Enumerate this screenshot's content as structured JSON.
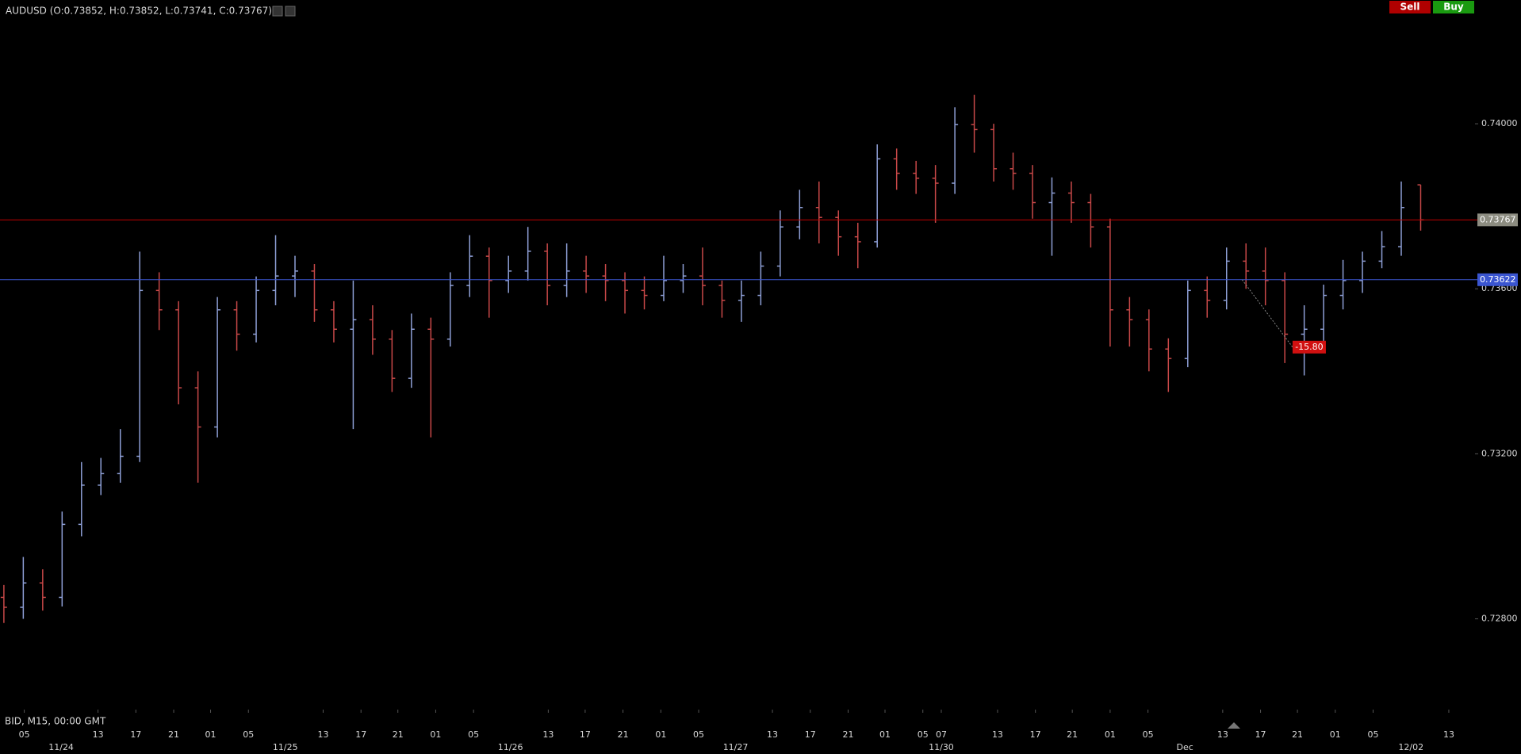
{
  "chart_data": {
    "type": "ohlc",
    "title": "AUDUSD (O:0.73852, H:0.73852, L:0.73741, C:0.73767)",
    "subtitle": "BID, M15, 00:00 GMT",
    "buttons": [
      "Sell",
      "Buy"
    ],
    "up_color": "#8e9fd6",
    "down_color": "#c84848",
    "open": [
      0.72852,
      0.72828,
      0.72887,
      0.72852,
      0.73029,
      0.73124,
      0.73152,
      0.73194,
      0.73596,
      0.73549,
      0.7336,
      0.73265,
      0.73549,
      0.7349,
      0.73596,
      0.73631,
      0.73643,
      0.73549,
      0.73502,
      0.73525,
      0.73478,
      0.73383,
      0.73502,
      0.73478,
      0.73608,
      0.73679,
      0.7362,
      0.73643,
      0.73691,
      0.73608,
      0.73643,
      0.73631,
      0.7362,
      0.73596,
      0.73584,
      0.7362,
      0.73631,
      0.73608,
      0.73572,
      0.73584,
      0.73655,
      0.7375,
      0.73797,
      0.73773,
      0.73726,
      0.73714,
      0.73915,
      0.7388,
      0.73868,
      0.73856,
      0.73998,
      0.73986,
      0.73891,
      0.7388,
      0.73809,
      0.73832,
      0.73809,
      0.7375,
      0.73549,
      0.73525,
      0.73454,
      0.73431,
      0.73596,
      0.73572,
      0.73667,
      0.73643,
      0.7362,
      0.7349,
      0.73502,
      0.73584,
      0.7362,
      0.73667,
      0.73702,
      0.73852
    ],
    "high": [
      0.72882,
      0.7295,
      0.7292,
      0.7306,
      0.7318,
      0.7319,
      0.7326,
      0.7369,
      0.7364,
      0.7357,
      0.734,
      0.7358,
      0.7357,
      0.7363,
      0.7373,
      0.7368,
      0.7366,
      0.7357,
      0.7362,
      0.7356,
      0.735,
      0.7354,
      0.7353,
      0.7364,
      0.7373,
      0.737,
      0.7368,
      0.7375,
      0.7371,
      0.7371,
      0.7368,
      0.7366,
      0.7364,
      0.7363,
      0.7368,
      0.7366,
      0.737,
      0.7362,
      0.7362,
      0.7369,
      0.7379,
      0.7384,
      0.7386,
      0.7379,
      0.7376,
      0.7395,
      0.7394,
      0.7391,
      0.739,
      0.7404,
      0.7407,
      0.74,
      0.7393,
      0.739,
      0.7387,
      0.7386,
      0.7383,
      0.7377,
      0.7358,
      0.7355,
      0.7348,
      0.7362,
      0.7363,
      0.737,
      0.7371,
      0.737,
      0.7364,
      0.7356,
      0.7361,
      0.7367,
      0.7369,
      0.7374,
      0.7386,
      0.73852
    ],
    "low": [
      0.7279,
      0.728,
      0.7282,
      0.7283,
      0.73,
      0.731,
      0.7313,
      0.7318,
      0.735,
      0.7332,
      0.7313,
      0.7324,
      0.7345,
      0.7347,
      0.7356,
      0.7358,
      0.7352,
      0.7347,
      0.7326,
      0.7344,
      0.7335,
      0.7336,
      0.7324,
      0.7346,
      0.7358,
      0.7353,
      0.7359,
      0.7362,
      0.7356,
      0.7358,
      0.7359,
      0.7357,
      0.7354,
      0.7355,
      0.7357,
      0.7359,
      0.7356,
      0.7353,
      0.7352,
      0.7356,
      0.7363,
      0.7372,
      0.7371,
      0.7368,
      0.7365,
      0.737,
      0.7384,
      0.7383,
      0.7376,
      0.7383,
      0.7393,
      0.7386,
      0.7384,
      0.7377,
      0.7368,
      0.7376,
      0.737,
      0.7346,
      0.7346,
      0.734,
      0.7335,
      0.7341,
      0.7353,
      0.7355,
      0.736,
      0.7356,
      0.7342,
      0.7339,
      0.7347,
      0.7355,
      0.7359,
      0.7365,
      0.7368,
      0.73741
    ],
    "close": [
      0.72828,
      0.72887,
      0.72852,
      0.73029,
      0.73124,
      0.73152,
      0.73194,
      0.73596,
      0.73549,
      0.7336,
      0.73265,
      0.73549,
      0.7349,
      0.73596,
      0.73631,
      0.73643,
      0.73549,
      0.73502,
      0.73525,
      0.73478,
      0.73383,
      0.73502,
      0.73478,
      0.73608,
      0.73679,
      0.7362,
      0.73643,
      0.73691,
      0.73608,
      0.73643,
      0.73631,
      0.7362,
      0.73596,
      0.73584,
      0.7362,
      0.73631,
      0.73608,
      0.73572,
      0.73584,
      0.73655,
      0.7375,
      0.73797,
      0.73773,
      0.73726,
      0.73714,
      0.73915,
      0.7388,
      0.73868,
      0.73856,
      0.73998,
      0.73986,
      0.73891,
      0.7388,
      0.73809,
      0.73832,
      0.73809,
      0.7375,
      0.73549,
      0.73525,
      0.73454,
      0.73431,
      0.73596,
      0.73572,
      0.73667,
      0.73643,
      0.7362,
      0.7349,
      0.73502,
      0.73584,
      0.7362,
      0.73667,
      0.73702,
      0.73797,
      0.73767
    ],
    "xlim": [
      -0.2,
      75.8
    ],
    "ylim": [
      0.7258,
      0.743
    ],
    "yticks": [
      {
        "value": 0.728,
        "label": "0.72800"
      },
      {
        "value": 0.732,
        "label": "0.73200"
      },
      {
        "value": 0.736,
        "label": "0.73600"
      },
      {
        "value": 0.74,
        "label": "0.74000"
      }
    ],
    "xticks": [
      {
        "value": 1.05,
        "label": "05"
      },
      {
        "value": 4.85,
        "label": "13"
      },
      {
        "value": 6.8,
        "label": "17"
      },
      {
        "value": 8.75,
        "label": "21"
      },
      {
        "value": 10.65,
        "label": "01"
      },
      {
        "value": 12.6,
        "label": "05"
      },
      {
        "value": 16.45,
        "label": "13"
      },
      {
        "value": 18.4,
        "label": "17"
      },
      {
        "value": 20.3,
        "label": "21"
      },
      {
        "value": 22.25,
        "label": "01"
      },
      {
        "value": 24.2,
        "label": "05"
      },
      {
        "value": 28.05,
        "label": "13"
      },
      {
        "value": 29.95,
        "label": "17"
      },
      {
        "value": 31.9,
        "label": "21"
      },
      {
        "value": 33.85,
        "label": "01"
      },
      {
        "value": 35.8,
        "label": "05"
      },
      {
        "value": 39.6,
        "label": "13"
      },
      {
        "value": 41.55,
        "label": "17"
      },
      {
        "value": 43.5,
        "label": "21"
      },
      {
        "value": 45.4,
        "label": "01"
      },
      {
        "value": 47.35,
        "label": "05"
      },
      {
        "value": 48.3,
        "label": "07"
      },
      {
        "value": 51.2,
        "label": "13"
      },
      {
        "value": 53.15,
        "label": "17"
      },
      {
        "value": 55.05,
        "label": "21"
      },
      {
        "value": 57,
        "label": "01"
      },
      {
        "value": 58.95,
        "label": "05"
      },
      {
        "value": 62.8,
        "label": "13"
      },
      {
        "value": 64.75,
        "label": "17"
      },
      {
        "value": 66.65,
        "label": "21"
      },
      {
        "value": 68.6,
        "label": "01"
      },
      {
        "value": 70.55,
        "label": "05"
      },
      {
        "value": 74.45,
        "label": "13"
      }
    ],
    "date_ticks": [
      {
        "value": 2.95,
        "label": "11/24"
      },
      {
        "value": 14.5,
        "label": "11/25"
      },
      {
        "value": 26.1,
        "label": "11/26"
      },
      {
        "value": 37.7,
        "label": "11/27"
      },
      {
        "value": 48.3,
        "label": "11/30"
      },
      {
        "value": 60.85,
        "label": "Dec"
      },
      {
        "value": 72.5,
        "label": "12/02"
      }
    ],
    "price_line": {
      "value": 0.73767,
      "label": "0.73767",
      "color": "#c00000",
      "tag_color": "#8c8c80"
    },
    "bid_line": {
      "value": 0.73622,
      "label": "0.73622",
      "color": "#3a55d0",
      "tag_color": "#3a55d0"
    },
    "annotation": {
      "text": "-15.80"
    }
  }
}
